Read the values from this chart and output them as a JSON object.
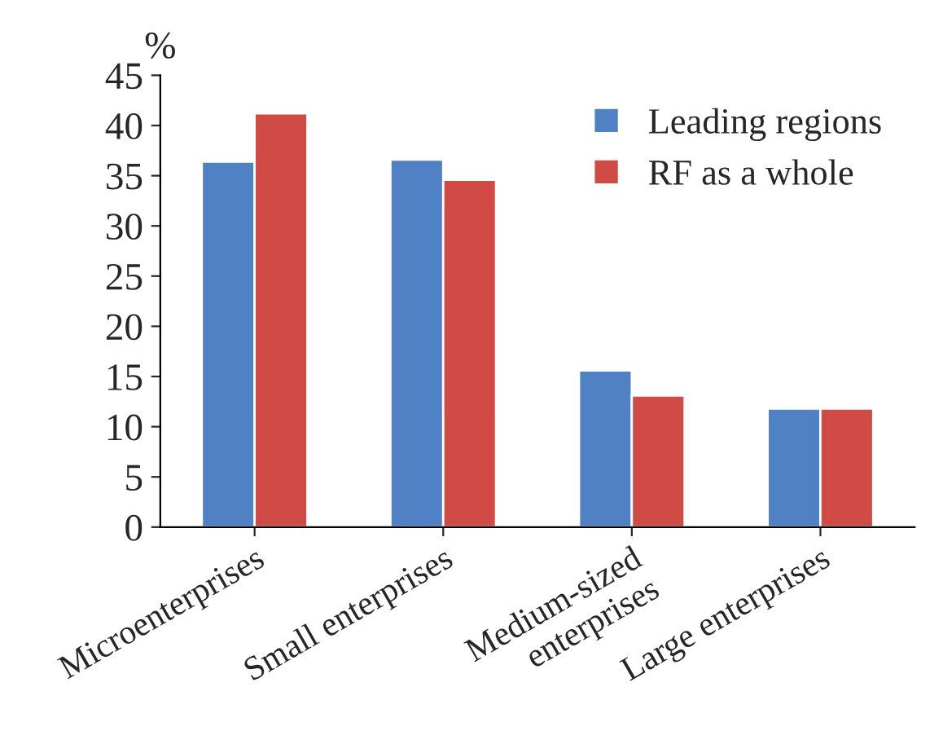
{
  "chart_data": {
    "type": "bar",
    "ylabel": "%",
    "categories": [
      "Microenterprises",
      "Small enterprises",
      "Medium-sized\nenterprises",
      "Large enterprises"
    ],
    "series": [
      {
        "name": "Leading regions",
        "color": "#4f81c4",
        "values": [
          36.4,
          36.6,
          15.6,
          11.8
        ]
      },
      {
        "name": "RF as a whole",
        "color": "#d04b45",
        "values": [
          41.2,
          34.6,
          13.1,
          11.8
        ]
      }
    ],
    "ylim": [
      0,
      45
    ],
    "yticks": [
      0,
      5,
      10,
      15,
      20,
      25,
      30,
      35,
      40,
      45
    ],
    "grid": false,
    "legend": "top right"
  }
}
